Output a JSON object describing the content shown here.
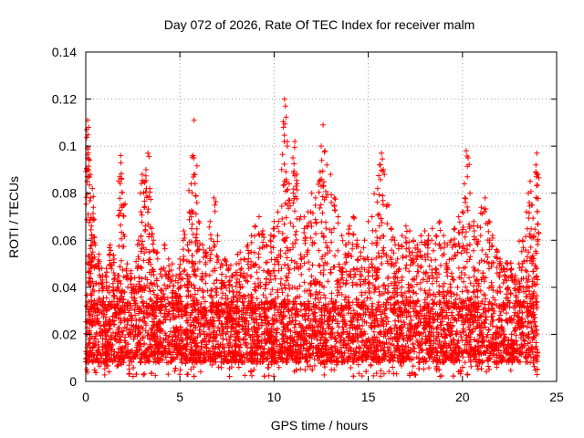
{
  "chart_data": {
    "type": "scatter",
    "title": "Day 072 of 2026, Rate Of TEC Index for receiver malm",
    "xlabel": "GPS time / hours",
    "ylabel": "ROTI / TECUs",
    "xlim": [
      0,
      25
    ],
    "ylim": [
      0,
      0.14
    ],
    "xticks": [
      0,
      5,
      10,
      15,
      20,
      25
    ],
    "yticks": [
      0,
      0.02,
      0.04,
      0.06,
      0.08,
      0.1,
      0.12,
      0.14
    ],
    "xtick_labels": [
      "0",
      "5",
      "10",
      "15",
      "20",
      "25"
    ],
    "ytick_labels": [
      "0",
      "0.02",
      "0.04",
      "0.06",
      "0.08",
      "0.1",
      "0.12",
      "0.14"
    ],
    "grid": true,
    "marker": "plus",
    "data_range_x": [
      0,
      24
    ],
    "series": [
      {
        "name": "ROTI",
        "color": "#ff0000",
        "points": [
          [
            0.05,
            0.107
          ],
          [
            0.1,
            0.111
          ],
          [
            0.15,
            0.108
          ],
          [
            0.2,
            0.094
          ],
          [
            0.25,
            0.078
          ],
          [
            0.3,
            0.066
          ],
          [
            0.35,
            0.082
          ],
          [
            0.4,
            0.074
          ],
          [
            0.5,
            0.058
          ],
          [
            0.7,
            0.054
          ],
          [
            0.9,
            0.045
          ],
          [
            1.1,
            0.048
          ],
          [
            1.3,
            0.058
          ],
          [
            1.5,
            0.052
          ],
          [
            1.7,
            0.045
          ],
          [
            1.8,
            0.087
          ],
          [
            1.85,
            0.096
          ],
          [
            1.9,
            0.086
          ],
          [
            2.0,
            0.075
          ],
          [
            2.2,
            0.05
          ],
          [
            2.4,
            0.047
          ],
          [
            2.6,
            0.044
          ],
          [
            2.8,
            0.06
          ],
          [
            2.9,
            0.08
          ],
          [
            3.0,
            0.088
          ],
          [
            3.1,
            0.085
          ],
          [
            3.2,
            0.09
          ],
          [
            3.3,
            0.097
          ],
          [
            3.4,
            0.082
          ],
          [
            3.5,
            0.065
          ],
          [
            3.6,
            0.06
          ],
          [
            3.8,
            0.055
          ],
          [
            4.0,
            0.048
          ],
          [
            4.2,
            0.058
          ],
          [
            4.4,
            0.052
          ],
          [
            4.6,
            0.05
          ],
          [
            4.8,
            0.045
          ],
          [
            5.0,
            0.052
          ],
          [
            5.2,
            0.064
          ],
          [
            5.4,
            0.058
          ],
          [
            5.5,
            0.072
          ],
          [
            5.6,
            0.084
          ],
          [
            5.7,
            0.096
          ],
          [
            5.75,
            0.111
          ],
          [
            5.8,
            0.088
          ],
          [
            5.9,
            0.076
          ],
          [
            6.0,
            0.068
          ],
          [
            6.2,
            0.058
          ],
          [
            6.4,
            0.055
          ],
          [
            6.6,
            0.068
          ],
          [
            6.8,
            0.078
          ],
          [
            7.0,
            0.062
          ],
          [
            7.2,
            0.05
          ],
          [
            7.4,
            0.052
          ],
          [
            7.6,
            0.048
          ],
          [
            7.8,
            0.045
          ],
          [
            8.0,
            0.05
          ],
          [
            8.2,
            0.055
          ],
          [
            8.4,
            0.052
          ],
          [
            8.6,
            0.058
          ],
          [
            8.8,
            0.062
          ],
          [
            9.0,
            0.066
          ],
          [
            9.2,
            0.07
          ],
          [
            9.4,
            0.064
          ],
          [
            9.6,
            0.058
          ],
          [
            9.8,
            0.06
          ],
          [
            10.0,
            0.068
          ],
          [
            10.2,
            0.072
          ],
          [
            10.4,
            0.09
          ],
          [
            10.5,
            0.108
          ],
          [
            10.55,
            0.12
          ],
          [
            10.6,
            0.117
          ],
          [
            10.7,
            0.1
          ],
          [
            10.8,
            0.084
          ],
          [
            11.0,
            0.095
          ],
          [
            11.1,
            0.102
          ],
          [
            11.2,
            0.088
          ],
          [
            11.4,
            0.07
          ],
          [
            11.6,
            0.065
          ],
          [
            11.8,
            0.072
          ],
          [
            12.0,
            0.08
          ],
          [
            12.2,
            0.078
          ],
          [
            12.4,
            0.085
          ],
          [
            12.5,
            0.1
          ],
          [
            12.6,
            0.109
          ],
          [
            12.7,
            0.098
          ],
          [
            12.8,
            0.092
          ],
          [
            13.0,
            0.088
          ],
          [
            13.2,
            0.078
          ],
          [
            13.4,
            0.07
          ],
          [
            13.6,
            0.062
          ],
          [
            13.8,
            0.058
          ],
          [
            14.0,
            0.066
          ],
          [
            14.2,
            0.07
          ],
          [
            14.4,
            0.06
          ],
          [
            14.6,
            0.055
          ],
          [
            14.8,
            0.06
          ],
          [
            15.0,
            0.068
          ],
          [
            15.2,
            0.07
          ],
          [
            15.4,
            0.064
          ],
          [
            15.5,
            0.082
          ],
          [
            15.6,
            0.092
          ],
          [
            15.7,
            0.097
          ],
          [
            15.8,
            0.09
          ],
          [
            16.0,
            0.075
          ],
          [
            16.2,
            0.065
          ],
          [
            16.4,
            0.06
          ],
          [
            16.6,
            0.058
          ],
          [
            16.8,
            0.062
          ],
          [
            17.0,
            0.066
          ],
          [
            17.2,
            0.064
          ],
          [
            17.4,
            0.06
          ],
          [
            17.6,
            0.058
          ],
          [
            17.8,
            0.062
          ],
          [
            18.0,
            0.064
          ],
          [
            18.2,
            0.06
          ],
          [
            18.4,
            0.065
          ],
          [
            18.6,
            0.062
          ],
          [
            18.8,
            0.068
          ],
          [
            19.0,
            0.062
          ],
          [
            19.2,
            0.058
          ],
          [
            19.4,
            0.06
          ],
          [
            19.6,
            0.065
          ],
          [
            19.8,
            0.07
          ],
          [
            20.0,
            0.072
          ],
          [
            20.1,
            0.084
          ],
          [
            20.2,
            0.098
          ],
          [
            20.3,
            0.095
          ],
          [
            20.4,
            0.08
          ],
          [
            20.6,
            0.068
          ],
          [
            20.8,
            0.066
          ],
          [
            21.0,
            0.074
          ],
          [
            21.2,
            0.078
          ],
          [
            21.4,
            0.068
          ],
          [
            21.6,
            0.062
          ],
          [
            21.8,
            0.056
          ],
          [
            22.0,
            0.052
          ],
          [
            22.2,
            0.048
          ],
          [
            22.4,
            0.05
          ],
          [
            22.6,
            0.048
          ],
          [
            22.8,
            0.045
          ],
          [
            23.0,
            0.05
          ],
          [
            23.2,
            0.06
          ],
          [
            23.4,
            0.072
          ],
          [
            23.5,
            0.08
          ],
          [
            23.6,
            0.085
          ],
          [
            23.7,
            0.075
          ],
          [
            23.8,
            0.062
          ],
          [
            23.9,
            0.092
          ],
          [
            23.95,
            0.097
          ],
          [
            24.0,
            0.088
          ]
        ]
      }
    ],
    "dense_band": {
      "note": "dense low-level scatter across the full day",
      "x_range": [
        0,
        24
      ],
      "y_floor_range": [
        0.002,
        0.012
      ],
      "y_typical_range": [
        0.008,
        0.04
      ]
    }
  }
}
